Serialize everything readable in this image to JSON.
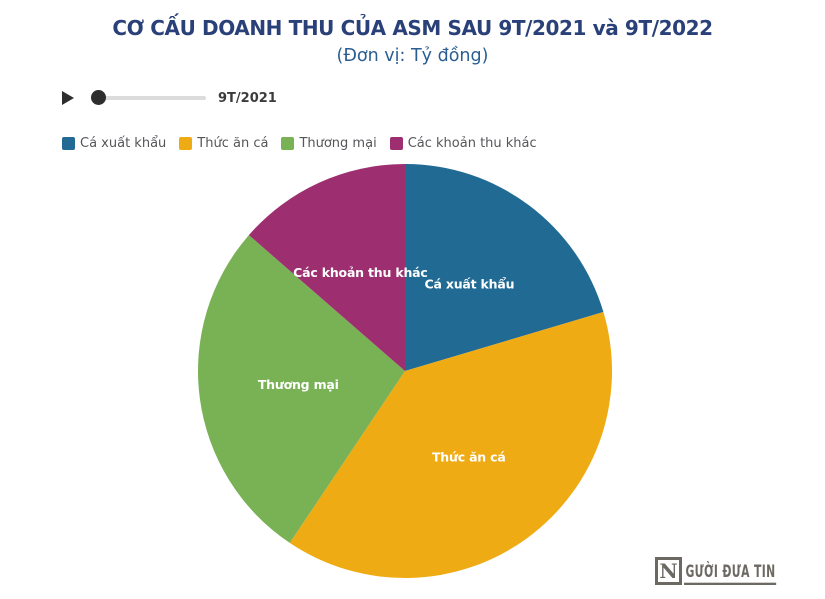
{
  "header": {
    "title": "CƠ CẤU DOANH THU CỦA ASM SAU 9T/2021 và 9T/2022",
    "subtitle": "(Đơn vị: Tỷ đồng)"
  },
  "player": {
    "play_icon": "play-triangle",
    "current_period": "9T/2021",
    "handle_position": "start"
  },
  "chart_data": {
    "type": "pie",
    "title": "CƠ CẤU DOANH THU CỦA ASM SAU 9T/2021 và 9T/2022",
    "subtitle": "(Đơn vị: Tỷ đồng)",
    "period_shown": "9T/2021",
    "start_angle_deg": 0,
    "direction": "clockwise",
    "legend_position": "top-left",
    "labels_inside": true,
    "slices": [
      {
        "label": "Cá xuất khẩu",
        "share_percent": 20.4,
        "color": "#206A94"
      },
      {
        "label": "Thức ăn cá",
        "share_percent": 39.0,
        "color": "#EFAB13"
      },
      {
        "label": "Thương mại",
        "share_percent": 27.0,
        "color": "#79B155"
      },
      {
        "label": "Các khoản thu khác",
        "share_percent": 13.6,
        "color": "#9D2F70"
      }
    ]
  },
  "logo": {
    "initial": "N",
    "text": "GƯỜI ĐƯA TIN"
  },
  "colors": {
    "background": "#FFFFFF",
    "title_text": "#2A4078",
    "subtitle_text": "#2A5E92",
    "legend_text": "#55565A",
    "player_control": "#2E2E2E",
    "slider_track": "#DCDCDC",
    "slice_label_text": "#FFFFFF",
    "logo": "#6C6862"
  }
}
